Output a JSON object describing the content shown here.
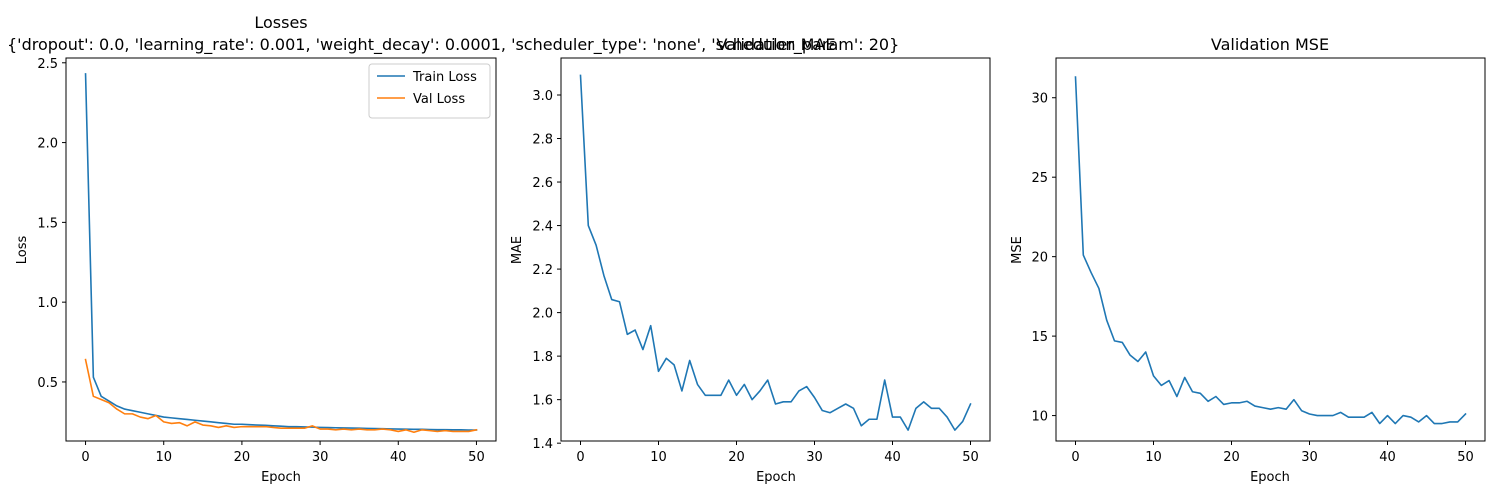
{
  "figure": {
    "suptitle": "{'dropout': 0.0, 'learning_rate': 0.001, 'weight_decay': 0.0001, 'scheduler_type': 'none', 'scheduler_param': 20}"
  },
  "colors": {
    "train": "#1f77b4",
    "val": "#ff7f0e"
  },
  "chart_data": [
    {
      "type": "line",
      "title": "Losses",
      "xlabel": "Epoch",
      "ylabel": "Loss",
      "xlim": [
        -2.5,
        52.5
      ],
      "ylim": [
        0.13,
        2.53
      ],
      "xticks": [
        0,
        10,
        20,
        30,
        40,
        50
      ],
      "yticks": [
        0.5,
        1.0,
        1.5,
        2.0,
        2.5
      ],
      "ytick_labels": [
        "0.5",
        "1.0",
        "1.5",
        "2.0",
        "2.5"
      ],
      "legend": "top-right",
      "series": [
        {
          "name": "Train Loss",
          "color": "#1f77b4",
          "x": [
            0,
            1,
            2,
            3,
            4,
            5,
            6,
            7,
            8,
            9,
            10,
            11,
            12,
            13,
            14,
            15,
            16,
            17,
            18,
            19,
            20,
            21,
            22,
            23,
            24,
            25,
            26,
            27,
            28,
            29,
            30,
            31,
            32,
            33,
            34,
            35,
            36,
            37,
            38,
            39,
            40,
            41,
            42,
            43,
            44,
            45,
            46,
            47,
            48,
            49,
            50
          ],
          "values": [
            2.43,
            0.53,
            0.41,
            0.38,
            0.35,
            0.33,
            0.32,
            0.31,
            0.3,
            0.29,
            0.28,
            0.275,
            0.27,
            0.265,
            0.26,
            0.255,
            0.25,
            0.245,
            0.24,
            0.235,
            0.235,
            0.232,
            0.23,
            0.228,
            0.225,
            0.223,
            0.22,
            0.22,
            0.218,
            0.217,
            0.215,
            0.214,
            0.213,
            0.212,
            0.211,
            0.21,
            0.209,
            0.208,
            0.207,
            0.206,
            0.205,
            0.204,
            0.203,
            0.203,
            0.202,
            0.201,
            0.201,
            0.2,
            0.2,
            0.199,
            0.199
          ]
        },
        {
          "name": "Val Loss",
          "color": "#ff7f0e",
          "x": [
            0,
            1,
            2,
            3,
            4,
            5,
            6,
            7,
            8,
            9,
            10,
            11,
            12,
            13,
            14,
            15,
            16,
            17,
            18,
            19,
            20,
            21,
            22,
            23,
            24,
            25,
            26,
            27,
            28,
            29,
            30,
            31,
            32,
            33,
            34,
            35,
            36,
            37,
            38,
            39,
            40,
            41,
            42,
            43,
            44,
            45,
            46,
            47,
            48,
            49,
            50
          ],
          "values": [
            0.64,
            0.41,
            0.39,
            0.37,
            0.33,
            0.3,
            0.3,
            0.28,
            0.27,
            0.29,
            0.25,
            0.24,
            0.245,
            0.225,
            0.25,
            0.23,
            0.225,
            0.215,
            0.225,
            0.215,
            0.22,
            0.22,
            0.22,
            0.22,
            0.215,
            0.21,
            0.21,
            0.21,
            0.21,
            0.225,
            0.205,
            0.205,
            0.2,
            0.205,
            0.2,
            0.205,
            0.2,
            0.2,
            0.205,
            0.2,
            0.19,
            0.2,
            0.185,
            0.2,
            0.195,
            0.19,
            0.195,
            0.19,
            0.19,
            0.19,
            0.2
          ]
        }
      ]
    },
    {
      "type": "line",
      "title": "Validation MAE",
      "xlabel": "Epoch",
      "ylabel": "MAE",
      "xlim": [
        -2.5,
        52.5
      ],
      "ylim": [
        1.41,
        3.17
      ],
      "xticks": [
        0,
        10,
        20,
        30,
        40,
        50
      ],
      "yticks": [
        1.4,
        1.6,
        1.8,
        2.0,
        2.2,
        2.4,
        2.6,
        2.8,
        3.0
      ],
      "ytick_labels": [
        "1.4",
        "1.6",
        "1.8",
        "2.0",
        "2.2",
        "2.4",
        "2.6",
        "2.8",
        "3.0"
      ],
      "series": [
        {
          "color": "#1f77b4",
          "x": [
            0,
            1,
            2,
            3,
            4,
            5,
            6,
            7,
            8,
            9,
            10,
            11,
            12,
            13,
            14,
            15,
            16,
            17,
            18,
            19,
            20,
            21,
            22,
            23,
            24,
            25,
            26,
            27,
            28,
            29,
            30,
            31,
            32,
            33,
            34,
            35,
            36,
            37,
            38,
            39,
            40,
            41,
            42,
            43,
            44,
            45,
            46,
            47,
            48,
            49,
            50
          ],
          "values": [
            3.09,
            2.4,
            2.31,
            2.17,
            2.06,
            2.05,
            1.9,
            1.92,
            1.83,
            1.94,
            1.73,
            1.79,
            1.76,
            1.64,
            1.78,
            1.67,
            1.62,
            1.62,
            1.62,
            1.69,
            1.62,
            1.67,
            1.6,
            1.64,
            1.69,
            1.58,
            1.59,
            1.59,
            1.64,
            1.66,
            1.61,
            1.55,
            1.54,
            1.56,
            1.58,
            1.56,
            1.48,
            1.51,
            1.51,
            1.69,
            1.52,
            1.52,
            1.46,
            1.56,
            1.59,
            1.56,
            1.56,
            1.52,
            1.46,
            1.5,
            1.58
          ]
        }
      ]
    },
    {
      "type": "line",
      "title": "Validation MSE",
      "xlabel": "Epoch",
      "ylabel": "MSE",
      "xlim": [
        -2.5,
        52.5
      ],
      "ylim": [
        8.4,
        32.5
      ],
      "xticks": [
        0,
        10,
        20,
        30,
        40,
        50
      ],
      "yticks": [
        10,
        15,
        20,
        25,
        30
      ],
      "ytick_labels": [
        "10",
        "15",
        "20",
        "25",
        "30"
      ],
      "series": [
        {
          "color": "#1f77b4",
          "x": [
            0,
            1,
            2,
            3,
            4,
            5,
            6,
            7,
            8,
            9,
            10,
            11,
            12,
            13,
            14,
            15,
            16,
            17,
            18,
            19,
            20,
            21,
            22,
            23,
            24,
            25,
            26,
            27,
            28,
            29,
            30,
            31,
            32,
            33,
            34,
            35,
            36,
            37,
            38,
            39,
            40,
            41,
            42,
            43,
            44,
            45,
            46,
            47,
            48,
            49,
            50
          ],
          "values": [
            31.3,
            20.1,
            19.0,
            18.0,
            16.0,
            14.7,
            14.6,
            13.8,
            13.4,
            14.0,
            12.5,
            11.9,
            12.2,
            11.2,
            12.4,
            11.5,
            11.4,
            10.9,
            11.2,
            10.7,
            10.8,
            10.8,
            10.9,
            10.6,
            10.5,
            10.4,
            10.5,
            10.4,
            11.0,
            10.3,
            10.1,
            10.0,
            10.0,
            10.0,
            10.2,
            9.9,
            9.9,
            9.9,
            10.2,
            9.5,
            10.0,
            9.5,
            10.0,
            9.9,
            9.6,
            10.0,
            9.5,
            9.5,
            9.6,
            9.6,
            10.1
          ]
        }
      ]
    }
  ]
}
